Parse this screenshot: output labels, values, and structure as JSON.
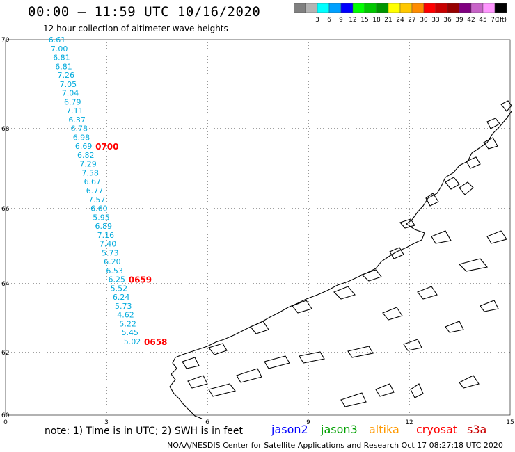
{
  "header": {
    "title": "00:00 – 11:59 UTC 10/16/2020",
    "subtitle": "12 hour collection of altimeter wave heights"
  },
  "color_scale": {
    "unit_label": "(ft)",
    "bins": [
      {
        "label": "",
        "color": "#808080"
      },
      {
        "label": "3",
        "color": "#b4b4b4"
      },
      {
        "label": "6",
        "color": "#00ffff"
      },
      {
        "label": "9",
        "color": "#00a0ff"
      },
      {
        "label": "12",
        "color": "#0000ff"
      },
      {
        "label": "15",
        "color": "#00ff00"
      },
      {
        "label": "18",
        "color": "#00c800"
      },
      {
        "label": "21",
        "color": "#009600"
      },
      {
        "label": "24",
        "color": "#ffff00"
      },
      {
        "label": "27",
        "color": "#ffc800"
      },
      {
        "label": "30",
        "color": "#ff8c00"
      },
      {
        "label": "33",
        "color": "#ff0000"
      },
      {
        "label": "36",
        "color": "#c80000"
      },
      {
        "label": "39",
        "color": "#960000"
      },
      {
        "label": "42",
        "color": "#800080"
      },
      {
        "label": "45",
        "color": "#c864c8"
      },
      {
        "label": "70",
        "color": "#ff96ff"
      },
      {
        "label": "",
        "color": "#000000"
      }
    ]
  },
  "axes": {
    "lon_ticks": [
      "0",
      "3",
      "6",
      "9",
      "12",
      "15"
    ],
    "lat_ticks": [
      "70",
      "68",
      "66",
      "64",
      "62",
      "60"
    ]
  },
  "track": {
    "color": "#00aadc",
    "values": [
      "6.61",
      "7.00",
      "6.81",
      "6.81",
      "7.26",
      "7.05",
      "7.04",
      "6.79",
      "7.11",
      "6.37",
      "6.78",
      "6.98",
      "6.69",
      "6.82",
      "7.29",
      "7.58",
      "6.67",
      "6.77",
      "7.57",
      "6.60",
      "5.95",
      "6.89",
      "7.16",
      "7.40",
      "5.73",
      "6.20",
      "6.53",
      "6.25",
      "5.52",
      "6.24",
      "5.73",
      "4.62",
      "5.22",
      "5.45",
      "5.02"
    ],
    "time_labels": [
      {
        "text": "0700",
        "at_index": 12
      },
      {
        "text": "0659",
        "at_index": 27
      },
      {
        "text": "0658",
        "at_index": 34
      }
    ],
    "time_color": "#ff0000"
  },
  "footer": {
    "note": "note:  1) Time is in UTC;  2) SWH is in feet",
    "satellites": [
      {
        "name": "jason2",
        "color": "#0000ff"
      },
      {
        "name": "jason3",
        "color": "#00a000"
      },
      {
        "name": "altika",
        "color": "#ff9900"
      },
      {
        "name": "cryosat",
        "color": "#ff0000"
      },
      {
        "name": "s3a",
        "color": "#c80000"
      }
    ],
    "credit": "NOAA/NESDIS Center for Satellite Applications and Research    Oct 17 08:27:18 UTC 2020"
  }
}
